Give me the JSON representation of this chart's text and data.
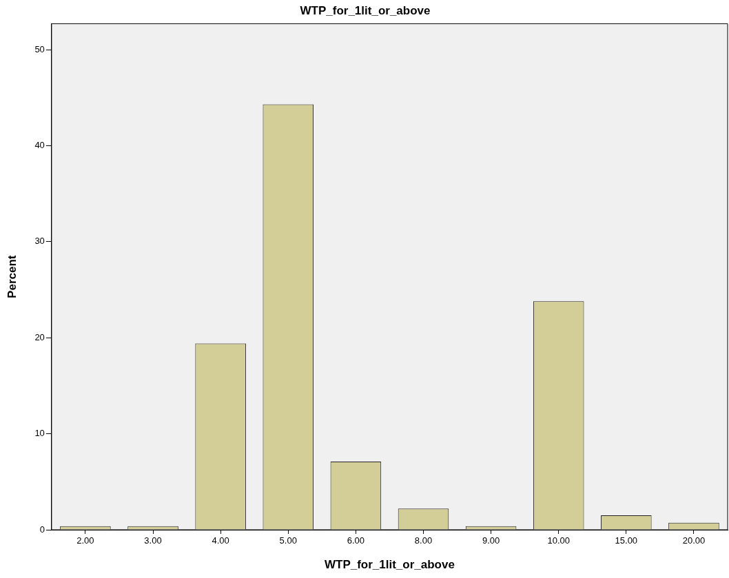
{
  "chart_data": {
    "type": "bar",
    "title": "WTP_for_1lit_or_above",
    "xlabel": "WTP_for_1lit_or_above",
    "ylabel": "Percent",
    "categories": [
      "2.00",
      "3.00",
      "4.00",
      "5.00",
      "6.00",
      "8.00",
      "9.00",
      "10.00",
      "15.00",
      "20.00"
    ],
    "values": [
      0.37,
      0.37,
      19.4,
      44.3,
      7.1,
      2.2,
      0.37,
      23.8,
      1.5,
      0.74
    ],
    "color": "#d3ce97",
    "ylim": [
      0,
      52.7
    ],
    "yticks": [
      0,
      10,
      20,
      30,
      40,
      50
    ],
    "grid": false,
    "legend": false
  }
}
